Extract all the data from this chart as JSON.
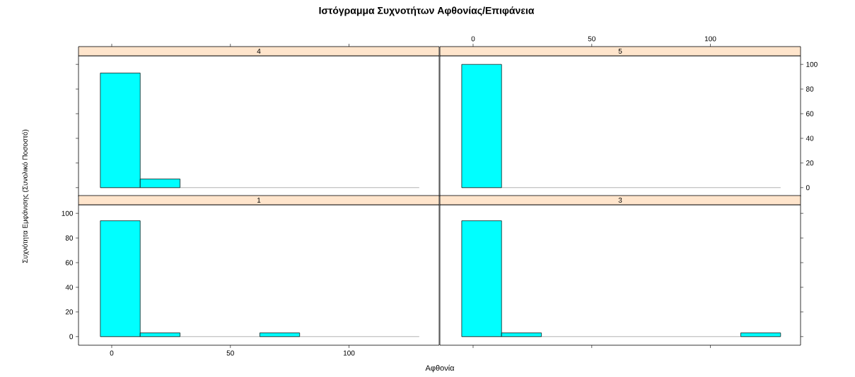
{
  "chart_data": [
    {
      "type": "histogram",
      "title": "Ιστόγραμμα Συχνοτήτων Αφθονίας/Επιφάνεια",
      "subtitle": "4",
      "bins": [
        -4.8,
        12,
        28.8,
        45.6,
        62.4,
        79.2,
        96,
        112.8,
        129.6
      ],
      "values": [
        93,
        7,
        0,
        0,
        0,
        0,
        0,
        0
      ],
      "color": "#00ffff",
      "xlim": [
        -14,
        138
      ],
      "xticks": [
        0,
        50,
        100
      ],
      "ylim": [
        -7,
        107
      ],
      "yticks": [
        0,
        20,
        40,
        60,
        80,
        100
      ],
      "tick_labels": false,
      "ref_lines": [
        {
          "axis": "y",
          "value": 0,
          "color": "#808080"
        }
      ]
    },
    {
      "type": "histogram",
      "subtitle": "5",
      "bins": [
        -4.8,
        12,
        28.8,
        45.6,
        62.4,
        79.2,
        96,
        112.8,
        129.6
      ],
      "values": [
        100,
        0,
        0,
        0,
        0,
        0,
        0,
        0
      ],
      "color": "#00ffff",
      "xlim": [
        -14,
        138
      ],
      "xticks": [
        0,
        50,
        100
      ],
      "ylim": [
        -7,
        107
      ],
      "yticks": [
        0,
        20,
        40,
        60,
        80,
        100
      ],
      "ref_lines": [
        {
          "axis": "y",
          "value": 0,
          "color": "#808080"
        }
      ]
    },
    {
      "type": "histogram",
      "subtitle": "1",
      "xlabel": "Αφθονία",
      "ylabel": "Συχνότητα Εμφάνισης (Συνολικό Ποσοστό)",
      "bins": [
        -4.8,
        12,
        28.8,
        45.6,
        62.4,
        79.2,
        96,
        112.8,
        129.6
      ],
      "values": [
        94,
        3,
        0,
        0,
        3,
        0,
        0,
        0
      ],
      "color": "#00ffff",
      "xlim": [
        -14,
        138
      ],
      "xticks": [
        0,
        50,
        100
      ],
      "ylim": [
        -7,
        107
      ],
      "yticks": [
        0,
        20,
        40,
        60,
        80,
        100
      ],
      "ref_lines": [
        {
          "axis": "y",
          "value": 0,
          "color": "#808080"
        }
      ]
    },
    {
      "type": "histogram",
      "subtitle": "3",
      "bins": [
        -4.8,
        12,
        28.8,
        45.6,
        62.4,
        79.2,
        96,
        112.8,
        129.6
      ],
      "values": [
        94,
        3,
        0,
        0,
        0,
        0,
        0,
        3
      ],
      "color": "#00ffff",
      "xlim": [
        -14,
        138
      ],
      "xticks": [
        0,
        50,
        100
      ],
      "ylim": [
        -7,
        107
      ],
      "yticks": [
        0,
        20,
        40,
        60,
        80,
        100
      ],
      "tick_labels": false,
      "ref_lines": [
        {
          "axis": "y",
          "value": 0,
          "color": "#808080"
        }
      ]
    }
  ]
}
